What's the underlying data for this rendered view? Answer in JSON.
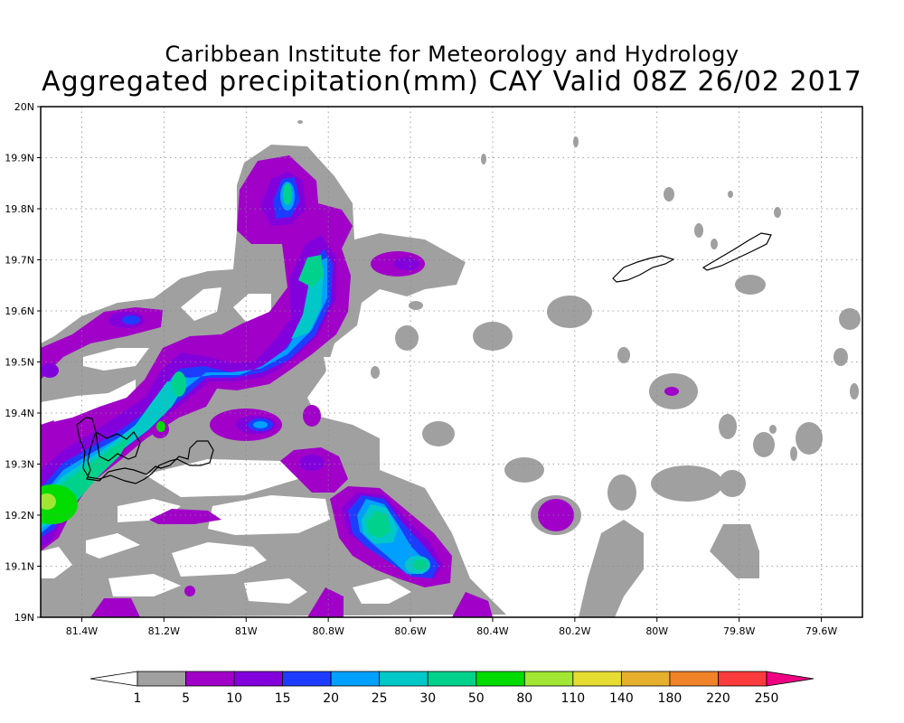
{
  "title": {
    "line1": "Caribbean Institute for Meteorology and Hydrology",
    "line2": "Aggregated precipitation(mm) CAY Valid 08Z 26/02 2017"
  },
  "map": {
    "lon_range": [
      -81.5,
      -79.5
    ],
    "lat_range": [
      19.0,
      20.0
    ],
    "x_ticks": [
      {
        "lon": -81.4,
        "label": "81.4W"
      },
      {
        "lon": -81.2,
        "label": "81.2W"
      },
      {
        "lon": -81.0,
        "label": "81W"
      },
      {
        "lon": -80.8,
        "label": "80.8W"
      },
      {
        "lon": -80.6,
        "label": "80.6W"
      },
      {
        "lon": -80.4,
        "label": "80.4W"
      },
      {
        "lon": -80.2,
        "label": "80.2W"
      },
      {
        "lon": -80.0,
        "label": "80W"
      },
      {
        "lon": -79.8,
        "label": "79.8W"
      },
      {
        "lon": -79.6,
        "label": "79.6W"
      }
    ],
    "y_ticks": [
      {
        "lat": 19.0,
        "label": "19N"
      },
      {
        "lat": 19.1,
        "label": "19.1N"
      },
      {
        "lat": 19.2,
        "label": "19.2N"
      },
      {
        "lat": 19.3,
        "label": "19.3N"
      },
      {
        "lat": 19.4,
        "label": "19.4N"
      },
      {
        "lat": 19.5,
        "label": "19.5N"
      },
      {
        "lat": 19.6,
        "label": "19.6N"
      },
      {
        "lat": 19.7,
        "label": "19.7N"
      },
      {
        "lat": 19.8,
        "label": "19.8N"
      },
      {
        "lat": 19.9,
        "label": "19.9N"
      },
      {
        "lat": 20.0,
        "label": "20N"
      }
    ],
    "grid": "dotted"
  },
  "colorbar": {
    "levels": [
      "1",
      "5",
      "10",
      "15",
      "20",
      "25",
      "30",
      "50",
      "80",
      "110",
      "140",
      "180",
      "220",
      "250"
    ],
    "colors": [
      "#ffffff",
      "#a0a0a0",
      "#a000c8",
      "#8200dc",
      "#1e3cff",
      "#00a0ff",
      "#00c8c8",
      "#00d28c",
      "#00dc00",
      "#a0e632",
      "#e6dc32",
      "#e6af2d",
      "#f08228",
      "#fa3c3c",
      "#f00082"
    ]
  }
}
